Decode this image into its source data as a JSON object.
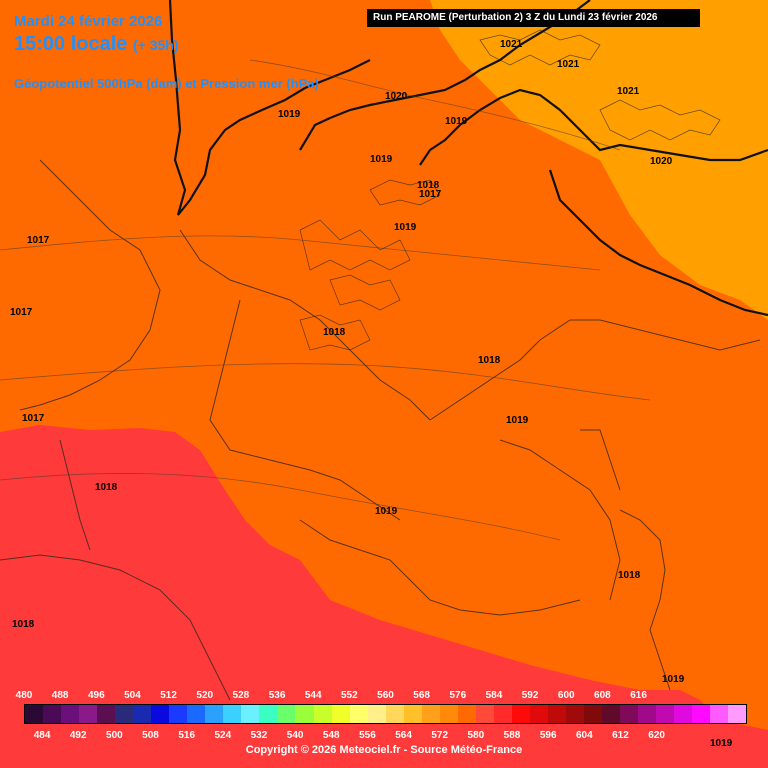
{
  "header": {
    "date": "Mardi 24 février 2026",
    "time": "15:00 locale",
    "lead": "(+ 35h)",
    "field": "Géopotentiel 500hPa (dam) et Pression mer (hPa)",
    "run": "Run PEAROME (Perturbation 2) 3 Z du Lundi 23 février 2026"
  },
  "pressure_labels": [
    "1021",
    "1021",
    "1021",
    "1020",
    "1020",
    "1019",
    "1019",
    "1019",
    "1018",
    "1017",
    "1019",
    "1017",
    "1017",
    "1018",
    "1018",
    "1017",
    "1019",
    "1018",
    "1019",
    "1018",
    "1018",
    "1019",
    "1019"
  ],
  "legend": {
    "top_values": [
      "480",
      "488",
      "496",
      "504",
      "512",
      "520",
      "528",
      "536",
      "544",
      "552",
      "560",
      "568",
      "576",
      "584",
      "592",
      "600",
      "608",
      "616"
    ],
    "bottom_values": [
      "484",
      "492",
      "500",
      "508",
      "516",
      "524",
      "532",
      "540",
      "548",
      "556",
      "564",
      "572",
      "580",
      "588",
      "596",
      "604",
      "612",
      "620"
    ],
    "colors": [
      "#2a0a35",
      "#4b0a55",
      "#6b0f7a",
      "#8a1a8a",
      "#5a1050",
      "#2a2a7a",
      "#1a2ab0",
      "#0a0ae0",
      "#1a3aff",
      "#1a6aff",
      "#2aa0ff",
      "#3ad0ff",
      "#6af0ff",
      "#3affc0",
      "#6aff6a",
      "#9aff3a",
      "#c8ff2a",
      "#f0ff2a",
      "#ffff6a",
      "#fff08a",
      "#ffd85a",
      "#ffc02a",
      "#ffa01a",
      "#ff8a0a",
      "#ff6a00",
      "#ff4a3a",
      "#ff2a2a",
      "#ff0a0a",
      "#e00a0a",
      "#c00a0a",
      "#a00a0a",
      "#800a0a",
      "#600a2a",
      "#800a5a",
      "#a00a8a",
      "#c00ab0",
      "#e00ae0",
      "#ff0aff",
      "#ff5aff",
      "#ff9aff"
    ]
  },
  "copyright": "Copyright © 2026 Meteociel.fr - Source Météo-France",
  "palette": {
    "z572": "#ff3a3a",
    "z576": "#ff6a00",
    "z580": "#ff9a00"
  }
}
